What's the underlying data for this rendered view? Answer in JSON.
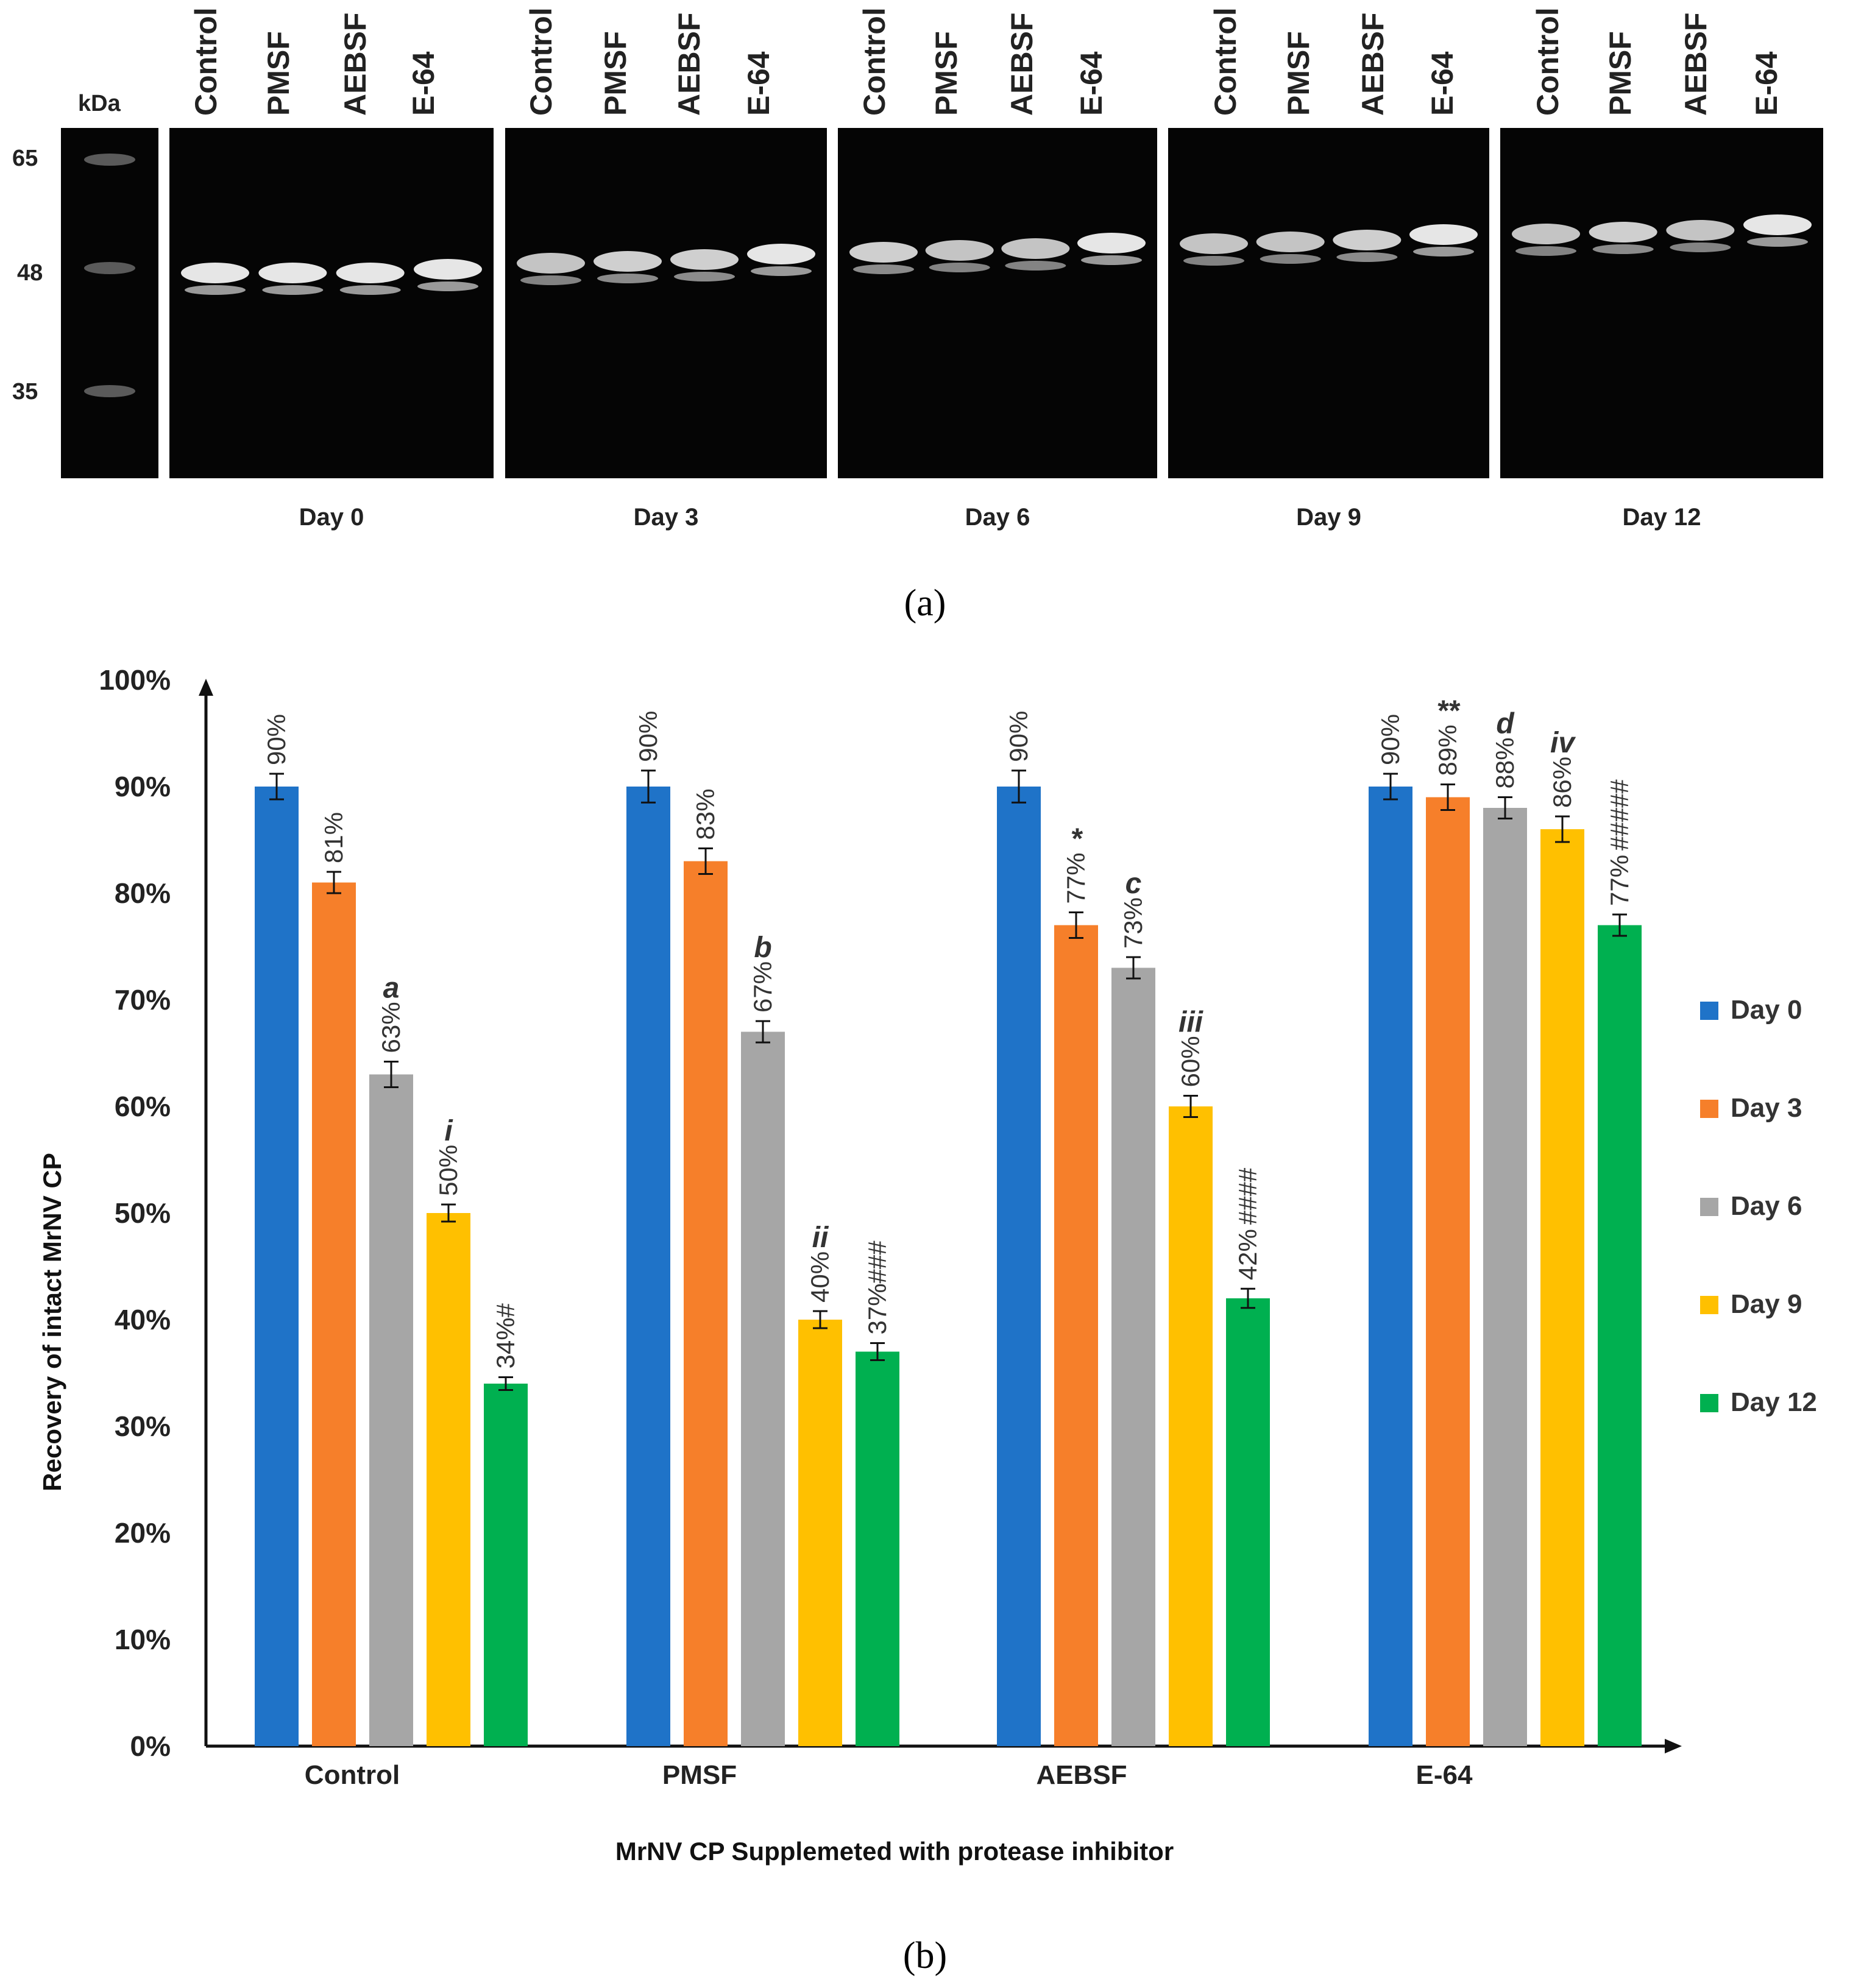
{
  "panel_a": {
    "caption": "(a)",
    "unit_label": "kDa",
    "markers": [
      "65",
      "48",
      "35"
    ],
    "lane_labels": [
      "Control",
      "PMSF",
      "AEBSF",
      "E-64"
    ],
    "days": [
      "Day 0",
      "Day 3",
      "Day 6",
      "Day 9",
      "Day 12"
    ]
  },
  "panel_b": {
    "caption": "(b)"
  },
  "chart_data": {
    "type": "bar",
    "title": "",
    "xlabel": "MrNV CP Supplemeted with protease inhibitor",
    "ylabel": "Recovery of intact  MrNV CP",
    "ylim": [
      0,
      100
    ],
    "yticks": [
      "0%",
      "10%",
      "20%",
      "30%",
      "40%",
      "50%",
      "60%",
      "70%",
      "80%",
      "90%",
      "100%"
    ],
    "categories": [
      "Control",
      "PMSF",
      "AEBSF",
      "E-64"
    ],
    "legend_position": "right",
    "series": [
      {
        "name": "Day 0",
        "color": "#1f73c8",
        "values": [
          90,
          90,
          90,
          90
        ],
        "errors": [
          1.2,
          1.5,
          1.5,
          1.2
        ],
        "labels": [
          "90%",
          "90%",
          "90%",
          "90%"
        ],
        "sig": [
          "",
          "",
          "",
          ""
        ]
      },
      {
        "name": "Day 3",
        "color": "#f67f2a",
        "values": [
          81,
          83,
          77,
          89
        ],
        "errors": [
          1.0,
          1.2,
          1.2,
          1.2
        ],
        "labels": [
          "81%",
          "83%",
          "77%",
          "89%"
        ],
        "sig": [
          "",
          "",
          "*",
          "**"
        ]
      },
      {
        "name": "Day 6",
        "color": "#a6a6a6",
        "values": [
          63,
          67,
          73,
          88
        ],
        "errors": [
          1.2,
          1.0,
          1.0,
          1.0
        ],
        "labels": [
          "63%",
          "67%",
          "73%",
          "88%"
        ],
        "sig": [
          "a",
          "b",
          "c",
          "d"
        ]
      },
      {
        "name": "Day 9",
        "color": "#ffc000",
        "values": [
          50,
          40,
          60,
          86
        ],
        "errors": [
          0.8,
          0.8,
          1.0,
          1.2
        ],
        "labels": [
          "50%",
          "40%",
          "60%",
          "86%"
        ],
        "sig": [
          "i",
          "ii",
          "iii",
          "iv"
        ]
      },
      {
        "name": "Day 12",
        "color": "#00b050",
        "values": [
          34,
          37,
          42,
          77
        ],
        "errors": [
          0.6,
          0.8,
          0.9,
          1.0
        ],
        "labels": [
          "34%#",
          "37%###",
          "42%",
          "77%"
        ],
        "sig": [
          "",
          "",
          "####",
          "#####"
        ]
      }
    ]
  }
}
